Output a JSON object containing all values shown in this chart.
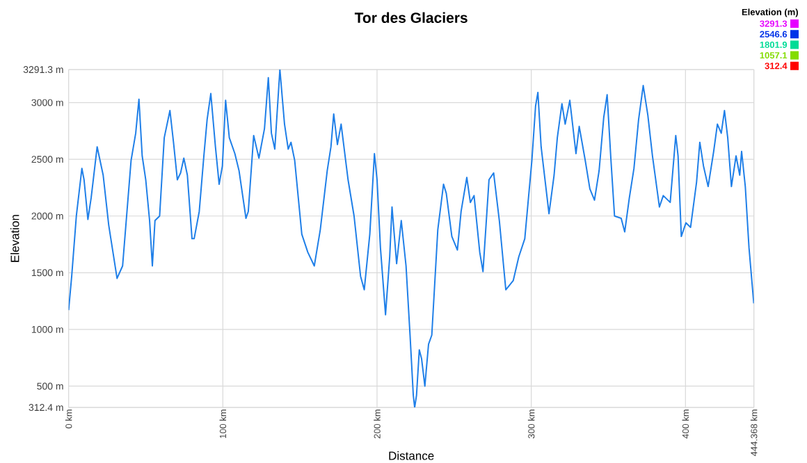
{
  "chart_data": {
    "type": "line",
    "title": "Tor des Glaciers",
    "xlabel": "Distance",
    "ylabel": "Elevation",
    "x": [
      0,
      2,
      5,
      8.6,
      10,
      12.5,
      14.6,
      18.5,
      22.4,
      26,
      31.4,
      35,
      40.5,
      43.5,
      45.6,
      47.7,
      50,
      52.5,
      54.3,
      56,
      59,
      62,
      65.7,
      68,
      70.5,
      72.6,
      74.7,
      77,
      80,
      81.4,
      84.7,
      87.7,
      89.8,
      92.2,
      95.2,
      97.6,
      99.7,
      101.8,
      104.2,
      107.8,
      110.5,
      115,
      116.5,
      120,
      123.4,
      127,
      129.5,
      131.5,
      133.7,
      137,
      140,
      142.4,
      144.2,
      146.6,
      151.2,
      155.1,
      159.3,
      163.2,
      167.7,
      170.1,
      171.9,
      174.3,
      176.7,
      181.2,
      185.1,
      189.3,
      191.7,
      195.3,
      198.3,
      200,
      202.2,
      205.5,
      208.2,
      209.7,
      212.7,
      215.7,
      218.8,
      221.4,
      223.5,
      224.4,
      225.6,
      227.4,
      228.9,
      231,
      233.4,
      235.5,
      239.4,
      243.1,
      244.9,
      248.5,
      252.1,
      254.5,
      258.2,
      260.5,
      262.9,
      266.6,
      268.7,
      272.6,
      275.6,
      279.3,
      283.5,
      288.3,
      291.9,
      295.8,
      300.4,
      302.8,
      304.3,
      306.4,
      311.5,
      314.8,
      316.9,
      319.9,
      322,
      325,
      329,
      331.1,
      335,
      338,
      341,
      344,
      347,
      349.2,
      351.6,
      354,
      358.3,
      360.6,
      363.6,
      366.6,
      369.6,
      372.6,
      375.6,
      378.6,
      383.1,
      385.6,
      390.1,
      393.7,
      395.2,
      397.3,
      400.3,
      403.3,
      407.2,
      409.3,
      411.7,
      414.7,
      418.3,
      420.7,
      423.2,
      425.3,
      427.4,
      429.8,
      432.8,
      435.2,
      436.4,
      438.8,
      441.2,
      444.3
    ],
    "values": [
      1170,
      1470,
      2000,
      2420,
      2320,
      1970,
      2160,
      2610,
      2360,
      1920,
      1450,
      1560,
      2490,
      2730,
      3030,
      2530,
      2320,
      1960,
      1560,
      1960,
      2000,
      2690,
      2930,
      2650,
      2320,
      2380,
      2510,
      2360,
      1800,
      1800,
      2040,
      2530,
      2850,
      3080,
      2610,
      2280,
      2440,
      3020,
      2690,
      2550,
      2400,
      1980,
      2040,
      2710,
      2510,
      2770,
      3220,
      2730,
      2590,
      3291.3,
      2810,
      2590,
      2650,
      2490,
      1840,
      1680,
      1560,
      1880,
      2400,
      2610,
      2900,
      2630,
      2810,
      2320,
      2000,
      1470,
      1350,
      1840,
      2550,
      2320,
      1720,
      1130,
      1640,
      2080,
      1580,
      1960,
      1560,
      950,
      420,
      312.4,
      420,
      820,
      740,
      500,
      870,
      950,
      1880,
      2280,
      2200,
      1820,
      1700,
      2040,
      2340,
      2120,
      2180,
      1680,
      1510,
      2320,
      2380,
      1960,
      1350,
      1430,
      1640,
      1800,
      2490,
      2970,
      3090,
      2610,
      2020,
      2360,
      2690,
      2990,
      2810,
      3020,
      2550,
      2790,
      2490,
      2240,
      2140,
      2400,
      2870,
      3070,
      2510,
      2000,
      1980,
      1860,
      2160,
      2420,
      2850,
      3150,
      2890,
      2530,
      2080,
      2180,
      2120,
      2710,
      2530,
      1820,
      1940,
      1900,
      2300,
      2650,
      2440,
      2260,
      2570,
      2810,
      2730,
      2930,
      2690,
      2260,
      2530,
      2360,
      2570,
      2260,
      1720,
      1230
    ],
    "color": "#1f7fe8",
    "xlim": [
      0,
      444.368
    ],
    "xticks": [
      {
        "value": 0,
        "label": "0 km"
      },
      {
        "value": 100,
        "label": "100 km"
      },
      {
        "value": 200,
        "label": "200 km"
      },
      {
        "value": 300,
        "label": "300 km"
      },
      {
        "value": 400,
        "label": "400 km"
      },
      {
        "value": 444.368,
        "label": "444.368 km"
      }
    ],
    "ylim": [
      312.4,
      3291.3
    ],
    "yticks": [
      {
        "value": 312.4,
        "label": "312.4 m"
      },
      {
        "value": 500,
        "label": "500 m"
      },
      {
        "value": 1000,
        "label": "1000 m"
      },
      {
        "value": 1500,
        "label": "1500 m"
      },
      {
        "value": 2000,
        "label": "2000 m"
      },
      {
        "value": 2500,
        "label": "2500 m"
      },
      {
        "value": 3000,
        "label": "3000 m"
      },
      {
        "value": 3291.3,
        "label": "3291.3 m"
      }
    ],
    "grid": true,
    "clabel": "Elevation (m)",
    "clim": [
      312.4,
      3291.3
    ],
    "cticks": [
      3291.3,
      2546.6,
      1801.9,
      1057.1,
      312.4
    ]
  }
}
